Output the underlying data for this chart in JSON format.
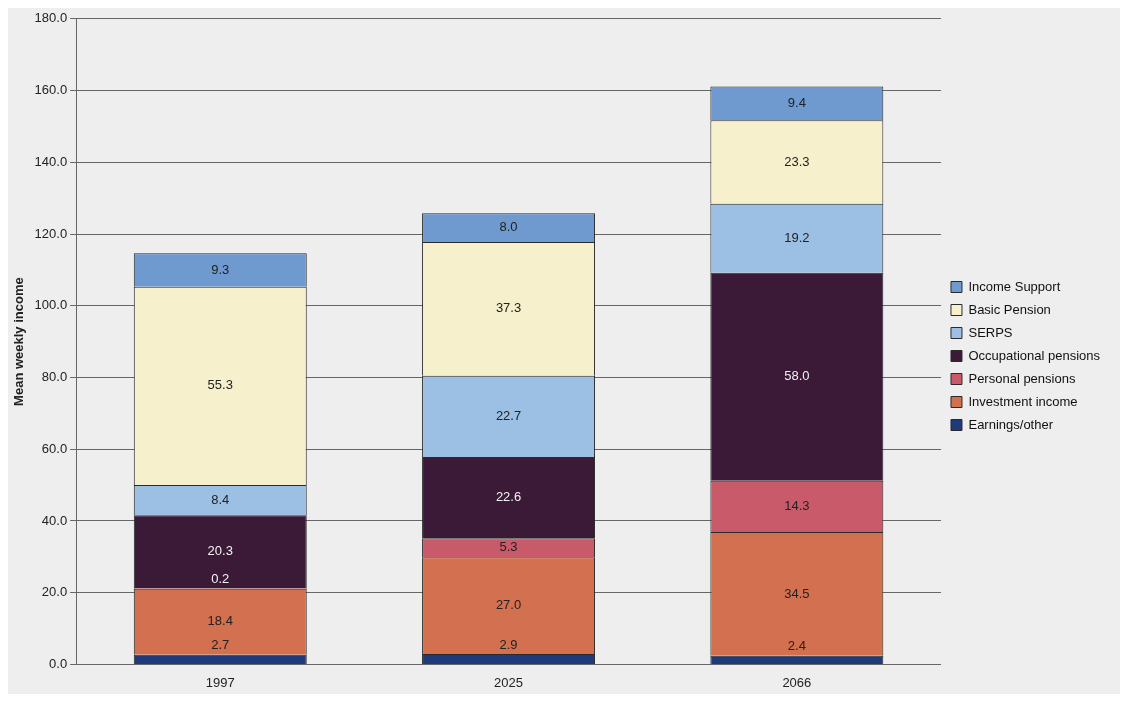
{
  "chart_data": {
    "type": "bar",
    "stacked": true,
    "ylabel": "Mean weekly income",
    "categories": [
      "1997",
      "2025",
      "2066"
    ],
    "series": [
      {
        "name": "Earnings/other",
        "color": "#1f3a7a",
        "values": [
          2.7,
          2.9,
          2.4
        ],
        "value_labels": [
          "2.7",
          "2.9",
          "2.4"
        ]
      },
      {
        "name": "Investment income",
        "color": "#d2704f",
        "values": [
          18.4,
          27.0,
          34.5
        ],
        "value_labels": [
          "18.4",
          "27.0",
          "34.5"
        ]
      },
      {
        "name": "Personal pensions",
        "color": "#c85a6a",
        "values": [
          0.2,
          5.3,
          14.3
        ],
        "value_labels": [
          "0.2",
          "5.3",
          "14.3"
        ]
      },
      {
        "name": "Occupational pensions",
        "color": "#3a1a36",
        "values": [
          20.3,
          22.6,
          58.0
        ],
        "value_labels": [
          "20.3",
          "22.6",
          "58.0"
        ]
      },
      {
        "name": "SERPS",
        "color": "#9cc0e4",
        "values": [
          8.4,
          22.7,
          19.2
        ],
        "value_labels": [
          "8.4",
          "22.7",
          "19.2"
        ]
      },
      {
        "name": "Basic Pension",
        "color": "#f6f0cc",
        "values": [
          55.3,
          37.3,
          23.3
        ],
        "value_labels": [
          "55.3",
          "37.3",
          "23.3"
        ]
      },
      {
        "name": "Income Support",
        "color": "#6f9ad0",
        "values": [
          9.3,
          8.0,
          9.4
        ],
        "value_labels": [
          "9.3",
          "8.0",
          "9.4"
        ]
      }
    ],
    "ylim": [
      0,
      180
    ],
    "yticks": [
      {
        "value": 0,
        "label": "0.0"
      },
      {
        "value": 20,
        "label": "20.0"
      },
      {
        "value": 40,
        "label": "40.0"
      },
      {
        "value": 60,
        "label": "60.0"
      },
      {
        "value": 80,
        "label": "80.0"
      },
      {
        "value": 100,
        "label": "100.0"
      },
      {
        "value": 120,
        "label": "120.0"
      },
      {
        "value": 140,
        "label": "140.0"
      },
      {
        "value": 160,
        "label": "160.0"
      },
      {
        "value": 180,
        "label": "180.0"
      }
    ],
    "grid": "y",
    "legend": "right"
  }
}
